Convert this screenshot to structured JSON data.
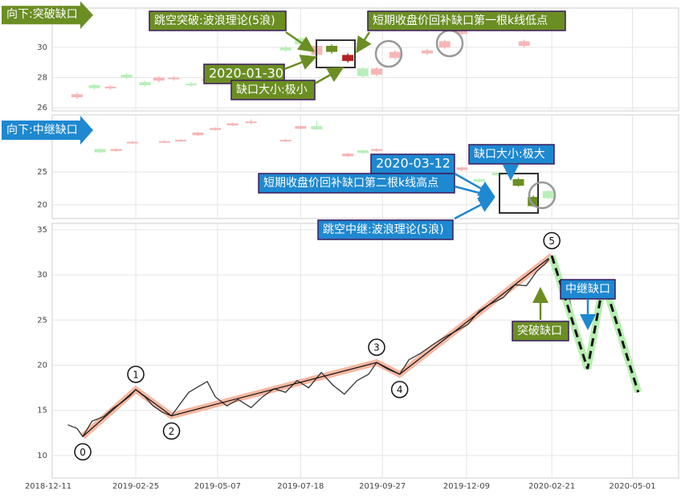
{
  "chart_data": [
    {
      "type": "candlestick",
      "annotations": [
        "向下:突破缺口",
        "跳空突破:波浪理论(5浪)",
        "短期收盘价回补缺口第一根k线低点",
        "2020-01-30",
        "缺口大小:极小"
      ],
      "x": [
        "2019-01-05",
        "2019-01-20",
        "2019-02-03",
        "2019-02-17",
        "2019-03-05",
        "2019-03-17",
        "2019-03-30",
        "2019-04-14",
        "2019-04-28",
        "2019-07-05",
        "2019-07-18",
        "2019-08-01",
        "2019-08-14",
        "2019-08-28",
        "2019-09-10",
        "2019-09-22",
        "2019-10-08",
        "2019-11-05",
        "2019-11-20",
        "2019-12-05",
        "2020-01-28"
      ],
      "open": [
        26.7,
        27.5,
        27.3,
        28.2,
        27.7,
        27.8,
        27.9,
        27.6,
        27.8,
        30.0,
        30.6,
        29.5,
        30.1,
        29.1,
        28.6,
        28.2,
        29.3,
        29.6,
        30.0,
        30.9,
        30.1
      ],
      "close": [
        26.9,
        27.3,
        27.4,
        28.0,
        27.5,
        28.0,
        28.0,
        27.5,
        27.9,
        29.8,
        30.2,
        30.1,
        29.7,
        29.5,
        28.1,
        28.6,
        29.7,
        29.8,
        30.4,
        31.1,
        30.4
      ],
      "high": [
        27.0,
        27.6,
        27.5,
        28.3,
        27.8,
        28.1,
        28.1,
        27.7,
        28.0,
        30.1,
        30.7,
        30.2,
        30.2,
        29.6,
        28.7,
        28.7,
        29.8,
        29.9,
        30.5,
        31.2,
        30.5
      ],
      "low": [
        26.6,
        27.2,
        27.2,
        27.9,
        27.4,
        27.7,
        27.8,
        27.4,
        27.7,
        29.7,
        30.1,
        29.4,
        29.6,
        29.0,
        28.0,
        28.1,
        29.2,
        29.5,
        29.9,
        30.8,
        30.0
      ],
      "colors": [
        "#f6b6b6",
        "#b9efb9",
        "#f6b6b6",
        "#b9efb9",
        "#b9efb9",
        "#f6b6b6",
        "#f6b6b6",
        "#b9efb9",
        "#f6b6b6",
        "#b9efb9",
        "#b9efb9",
        "#f6b6b6",
        "#6b8e23",
        "#b22222",
        "#b9efb9",
        "#f6b6b6",
        "#f6b6b6",
        "#f6b6b6",
        "#f6b6b6",
        "#f6b6b6",
        "#f6b6b6"
      ],
      "ylim": [
        25.8,
        32.6
      ],
      "yticks": [
        26,
        28,
        30
      ]
    },
    {
      "type": "candlestick",
      "annotations": [
        "向下:中继缺口",
        "缺口大小:极大",
        "2020-03-12",
        "短期收盘价回补缺口第二根k线高点",
        "跳空中继:波浪理论(5浪)"
      ],
      "x": [
        "2019-01-25",
        "2019-02-08",
        "2019-02-22",
        "2019-03-22",
        "2019-04-05",
        "2019-04-20",
        "2019-05-05",
        "2019-05-20",
        "2019-06-05",
        "2019-07-05",
        "2019-07-18",
        "2019-08-01",
        "2019-08-28",
        "2019-09-10",
        "2019-09-22",
        "2019-10-12",
        "2019-10-25",
        "2019-11-08",
        "2019-11-22",
        "2019-12-05",
        "2019-12-20",
        "2020-01-05",
        "2020-01-23",
        "2020-02-05",
        "2020-02-18"
      ],
      "open": [
        28.5,
        28.2,
        29.4,
        29.5,
        29.7,
        30.6,
        31.4,
        32.1,
        32.5,
        29.7,
        31.6,
        32.0,
        27.4,
        28.3,
        28.2,
        26.9,
        26.4,
        27.3,
        27.1,
        25.3,
        23.9,
        24.9,
        23.9,
        21.2,
        22.1
      ],
      "close": [
        28.0,
        28.5,
        29.6,
        29.7,
        29.9,
        31.0,
        31.7,
        32.4,
        32.7,
        29.9,
        32.0,
        31.5,
        27.8,
        27.9,
        28.5,
        26.5,
        26.7,
        27.6,
        27.5,
        25.7,
        23.5,
        24.5,
        22.9,
        19.8,
        21.0
      ],
      "high": [
        28.6,
        28.6,
        29.7,
        29.8,
        30.0,
        31.1,
        31.8,
        32.5,
        33.0,
        30.0,
        32.1,
        32.8,
        27.9,
        28.4,
        28.6,
        27.0,
        26.8,
        27.7,
        27.6,
        25.8,
        24.0,
        25.0,
        24.1,
        21.4,
        22.2
      ],
      "low": [
        27.9,
        28.1,
        29.3,
        29.4,
        29.6,
        30.5,
        31.3,
        32.0,
        32.3,
        29.6,
        31.5,
        31.4,
        27.3,
        27.8,
        28.1,
        26.4,
        26.3,
        27.2,
        27.0,
        25.2,
        23.4,
        24.4,
        22.8,
        19.7,
        20.9
      ],
      "colors": [
        "#b9efb9",
        "#f6b6b6",
        "#f6b6b6",
        "#f6b6b6",
        "#f6b6b6",
        "#f6b6b6",
        "#f6b6b6",
        "#f6b6b6",
        "#f6b6b6",
        "#f6b6b6",
        "#f6b6b6",
        "#b9efb9",
        "#f6b6b6",
        "#b9efb9",
        "#f6b6b6",
        "#b9efb9",
        "#f6b6b6",
        "#f6b6b6",
        "#f6b6b6",
        "#f6b6b6",
        "#b9efb9",
        "#b9efb9",
        "#6b8e23",
        "#6b8e23",
        "#b9efb9"
      ],
      "ylim": [
        17.9,
        33.7
      ],
      "yticks": [
        20,
        25
      ]
    },
    {
      "type": "line",
      "annotations": [
        "中继缺口",
        "突破缺口"
      ],
      "x": [
        "2018-12-28",
        "2019-01-05",
        "2019-01-10",
        "2019-01-18",
        "2019-01-28",
        "2019-02-05",
        "2019-02-12",
        "2019-02-20",
        "2019-02-25",
        "2019-03-05",
        "2019-03-12",
        "2019-03-20",
        "2019-03-28",
        "2019-04-05",
        "2019-04-12",
        "2019-04-20",
        "2019-04-28",
        "2019-05-05",
        "2019-05-15",
        "2019-05-25",
        "2019-06-05",
        "2019-06-15",
        "2019-06-25",
        "2019-07-05",
        "2019-07-15",
        "2019-07-25",
        "2019-08-05",
        "2019-08-15",
        "2019-08-25",
        "2019-09-05",
        "2019-09-15",
        "2019-09-22",
        "2019-10-01",
        "2019-10-12",
        "2019-10-20",
        "2019-10-30",
        "2019-11-10",
        "2019-11-20",
        "2019-11-30",
        "2019-12-10",
        "2019-12-20",
        "2019-12-30",
        "2020-01-10",
        "2020-01-20",
        "2020-01-30",
        "2020-02-08",
        "2020-02-15",
        "2020-02-21",
        "2020-02-28",
        "2020-03-06",
        "2020-03-12",
        "2020-03-18",
        "2020-03-23"
      ],
      "values": [
        13.4,
        13.0,
        12.1,
        13.8,
        14.3,
        15.2,
        15.8,
        16.6,
        17.3,
        16.5,
        15.5,
        14.8,
        14.4,
        15.8,
        17.0,
        17.6,
        18.2,
        16.5,
        15.5,
        16.2,
        15.3,
        16.5,
        17.4,
        17.0,
        18.3,
        17.5,
        19.2,
        17.8,
        16.8,
        18.3,
        19.0,
        20.3,
        19.6,
        19.0,
        20.6,
        21.3,
        22.3,
        23.1,
        23.8,
        24.5,
        26.0,
        26.8,
        27.5,
        28.9,
        28.8,
        30.4,
        31.2,
        32.1,
        29.5,
        28.2,
        24.5,
        21.0,
        19.6
      ],
      "color": "#333333",
      "waves": {
        "labels": [
          "0",
          "1",
          "2",
          "3",
          "4",
          "5"
        ],
        "x": [
          "2019-01-10",
          "2019-02-25",
          "2019-03-28",
          "2019-09-22",
          "2019-10-12",
          "2020-02-21"
        ],
        "values": [
          12.1,
          17.3,
          14.4,
          20.3,
          19.0,
          32.1
        ],
        "color": "#f4a58a"
      },
      "forecast": {
        "x": [
          "2020-02-21",
          "2020-03-23",
          "2020-04-06",
          "2020-05-06"
        ],
        "values": [
          32.1,
          19.6,
          29.3,
          17.0
        ]
      },
      "xlim": [
        "2018-12-11",
        "2020-06-10"
      ],
      "xticks": [
        "2018-12-11",
        "2019-02-25",
        "2019-05-07",
        "2019-07-18",
        "2019-09-27",
        "2019-12-09",
        "2020-02-21",
        "2020-05-01"
      ],
      "ylim": [
        7.5,
        35.7
      ],
      "yticks": [
        10,
        15,
        20,
        25,
        30,
        35
      ],
      "grid": true
    }
  ]
}
